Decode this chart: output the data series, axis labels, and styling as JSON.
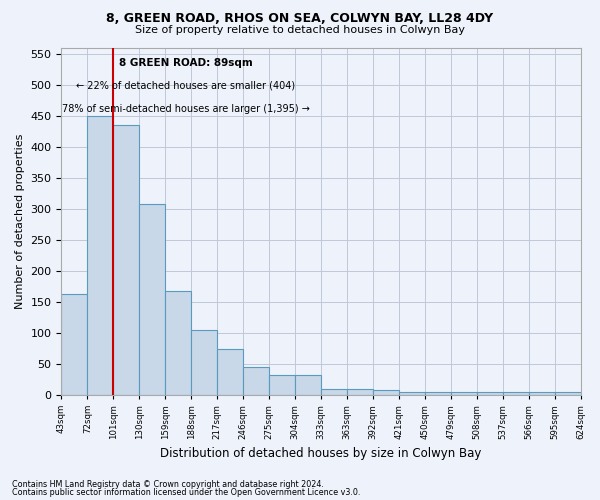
{
  "title1": "8, GREEN ROAD, RHOS ON SEA, COLWYN BAY, LL28 4DY",
  "title2": "Size of property relative to detached houses in Colwyn Bay",
  "xlabel": "Distribution of detached houses by size in Colwyn Bay",
  "ylabel": "Number of detached properties",
  "footer1": "Contains HM Land Registry data © Crown copyright and database right 2024.",
  "footer2": "Contains public sector information licensed under the Open Government Licence v3.0.",
  "annotation_title": "8 GREEN ROAD: 89sqm",
  "annotation_line1": "← 22% of detached houses are smaller (404)",
  "annotation_line2": "78% of semi-detached houses are larger (1,395) →",
  "bar_values": [
    163,
    450,
    435,
    307,
    167,
    105,
    73,
    44,
    32,
    32,
    10,
    10,
    8,
    5,
    5,
    5,
    5,
    5,
    5,
    5
  ],
  "categories": [
    "43sqm",
    "72sqm",
    "101sqm",
    "130sqm",
    "159sqm",
    "188sqm",
    "217sqm",
    "246sqm",
    "275sqm",
    "304sqm",
    "333sqm",
    "363sqm",
    "392sqm",
    "421sqm",
    "450sqm",
    "479sqm",
    "508sqm",
    "537sqm",
    "566sqm",
    "595sqm",
    "624sqm"
  ],
  "bar_color": "#c8d8e8",
  "bar_edge_color": "#5a9abf",
  "vline_color": "#cc0000",
  "ylim": [
    0,
    560
  ],
  "yticks": [
    0,
    50,
    100,
    150,
    200,
    250,
    300,
    350,
    400,
    450,
    500,
    550
  ],
  "bg_color": "#eef2fb",
  "plot_bg_color": "#eef2fb",
  "grid_color": "#c0c8d8",
  "annotation_box_color": "#ffffff",
  "annotation_box_edge": "#cc0000"
}
